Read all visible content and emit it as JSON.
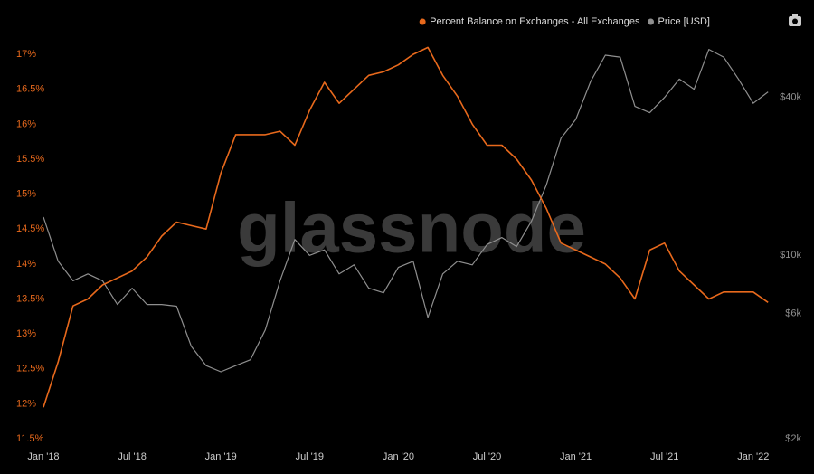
{
  "chart_data": {
    "type": "line",
    "watermark": "glassnode",
    "x": [
      "2018-01",
      "2018-02",
      "2018-03",
      "2018-04",
      "2018-05",
      "2018-06",
      "2018-07",
      "2018-08",
      "2018-09",
      "2018-10",
      "2018-11",
      "2018-12",
      "2019-01",
      "2019-02",
      "2019-03",
      "2019-04",
      "2019-05",
      "2019-06",
      "2019-07",
      "2019-08",
      "2019-09",
      "2019-10",
      "2019-11",
      "2019-12",
      "2020-01",
      "2020-02",
      "2020-03",
      "2020-04",
      "2020-05",
      "2020-06",
      "2020-07",
      "2020-08",
      "2020-09",
      "2020-10",
      "2020-11",
      "2020-12",
      "2021-01",
      "2021-02",
      "2021-03",
      "2021-04",
      "2021-05",
      "2021-06",
      "2021-07",
      "2021-08",
      "2021-09",
      "2021-10",
      "2021-11",
      "2021-12",
      "2022-01",
      "2022-02"
    ],
    "series": [
      {
        "name": "Percent Balance on Exchanges - All Exchanges",
        "color": "#e8691c",
        "axis": "y",
        "values": [
          11.95,
          12.6,
          13.4,
          13.5,
          13.7,
          13.8,
          13.9,
          14.1,
          14.4,
          14.6,
          14.55,
          14.5,
          15.3,
          15.85,
          15.85,
          15.85,
          15.9,
          15.7,
          16.2,
          16.6,
          16.3,
          16.5,
          16.7,
          16.75,
          16.85,
          17.0,
          17.1,
          16.7,
          16.4,
          16.0,
          15.7,
          15.7,
          15.5,
          15.2,
          14.8,
          14.3,
          14.2,
          14.1,
          14.0,
          13.8,
          13.5,
          14.2,
          14.3,
          13.9,
          13.7,
          13.5,
          13.6,
          13.6,
          13.6,
          13.45
        ]
      },
      {
        "name": "Price [USD]",
        "color": "#8f8f8f",
        "axis": "y2",
        "values": [
          14000,
          9500,
          8000,
          8500,
          8000,
          6500,
          7500,
          6500,
          6500,
          6400,
          4500,
          3800,
          3600,
          3800,
          4000,
          5200,
          8000,
          11500,
          10000,
          10500,
          8500,
          9200,
          7500,
          7200,
          9000,
          9500,
          5800,
          8500,
          9500,
          9200,
          11000,
          11700,
          10800,
          13500,
          18500,
          28000,
          33000,
          46000,
          58000,
          57000,
          37000,
          35000,
          40000,
          47000,
          43000,
          61000,
          57000,
          47000,
          38000,
          42000
        ]
      }
    ],
    "xticks": [
      {
        "value": "2018-01",
        "label": "Jan '18"
      },
      {
        "value": "2018-07",
        "label": "Jul '18"
      },
      {
        "value": "2019-01",
        "label": "Jan '19"
      },
      {
        "value": "2019-07",
        "label": "Jul '19"
      },
      {
        "value": "2020-01",
        "label": "Jan '20"
      },
      {
        "value": "2020-07",
        "label": "Jul '20"
      },
      {
        "value": "2021-01",
        "label": "Jan '21"
      },
      {
        "value": "2021-07",
        "label": "Jul '21"
      },
      {
        "value": "2022-01",
        "label": "Jan '22"
      }
    ],
    "ylim": [
      11.5,
      17.26
    ],
    "yticks": [
      {
        "value": 11.5,
        "label": "11.5%"
      },
      {
        "value": 12,
        "label": "12%"
      },
      {
        "value": 12.5,
        "label": "12.5%"
      },
      {
        "value": 13,
        "label": "13%"
      },
      {
        "value": 13.5,
        "label": "13.5%"
      },
      {
        "value": 14,
        "label": "14%"
      },
      {
        "value": 14.5,
        "label": "14.5%"
      },
      {
        "value": 15,
        "label": "15%"
      },
      {
        "value": 15.5,
        "label": "15.5%"
      },
      {
        "value": 16,
        "label": "16%"
      },
      {
        "value": 16.5,
        "label": "16.5%"
      },
      {
        "value": 17,
        "label": "17%"
      }
    ],
    "y2lim": [
      2000,
      68500
    ],
    "y2scale": "log",
    "y2ticks": [
      {
        "value": 2000,
        "label": "$2k"
      },
      {
        "value": 6000,
        "label": "$6k"
      },
      {
        "value": 10000,
        "label": "$10k"
      },
      {
        "value": 40000,
        "label": "$40k"
      }
    ],
    "grid": false
  }
}
